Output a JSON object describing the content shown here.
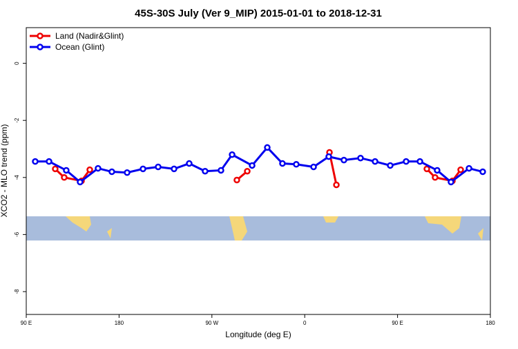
{
  "chart_data": {
    "type": "line",
    "title": "45S-30S July (Ver 9_MIP)   2015-01-01 to 2018-12-31",
    "x_label": "Longitude (deg E)",
    "y_label": "XCO2 - MLO trend (ppm)",
    "xlim": [
      90,
      540
    ],
    "ylim": [
      -8.8,
      1.25
    ],
    "xticks": [
      {
        "value": 90,
        "label": "90 E"
      },
      {
        "value": 180,
        "label": "180"
      },
      {
        "value": 270,
        "label": "90 W"
      },
      {
        "value": 360,
        "label": "0"
      },
      {
        "value": 450,
        "label": "90 E"
      },
      {
        "value": 540,
        "label": "180"
      }
    ],
    "yticks": [
      0,
      -2,
      -4,
      -6,
      -8
    ],
    "legend": "top-left",
    "series": [
      {
        "name": "Land (Nadir&Glint)",
        "color": "#ee0000",
        "x": [
          118.1,
          126.8,
          143.6,
          151.6,
          null,
          294.2,
          304.3,
          null,
          384.0,
          390.7,
          null,
          478.4,
          486.4,
          503.2,
          511.2
        ],
        "values": [
          -3.7,
          -4.0,
          -4.12,
          -3.73,
          null,
          -4.09,
          -3.78,
          null,
          -3.12,
          -4.26,
          null,
          -3.7,
          -4.0,
          -4.12,
          -3.73
        ]
      },
      {
        "name": "Ocean (Glint)",
        "color": "#0000ee",
        "x": [
          98.7,
          112.1,
          128.8,
          142.2,
          159.6,
          173.0,
          187.8,
          203.2,
          217.9,
          233.3,
          248.0,
          263.4,
          278.8,
          289.6,
          309.0,
          323.7,
          338.4,
          351.8,
          368.6,
          383.3,
          398.0,
          414.1,
          428.2,
          442.9,
          458.3,
          471.7,
          488.4,
          501.8,
          519.3,
          532.6
        ],
        "values": [
          -3.44,
          -3.44,
          -3.75,
          -4.16,
          -3.68,
          -3.8,
          -3.83,
          -3.7,
          -3.63,
          -3.7,
          -3.51,
          -3.78,
          -3.75,
          -3.2,
          -3.58,
          -2.95,
          -3.51,
          -3.54,
          -3.63,
          -3.27,
          -3.39,
          -3.32,
          -3.44,
          -3.58,
          -3.44,
          -3.44,
          -3.75,
          -4.16,
          -3.68,
          -3.8
        ]
      }
    ]
  }
}
